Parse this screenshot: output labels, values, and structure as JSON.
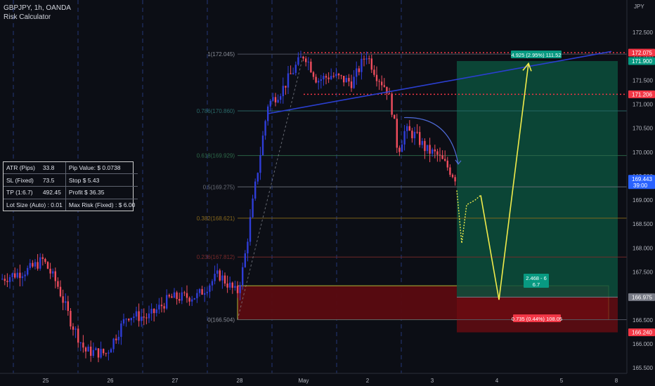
{
  "header": {
    "symbol_line": "GBPJPY, 1h, OANDA",
    "indicator": "Risk Calculator"
  },
  "axis": {
    "currency": "JPY"
  },
  "colors": {
    "bull": "#2f3dd8",
    "bear": "#f04d5e",
    "profit_zone": "#0c4f3c",
    "loss_zone": "#6f0c12",
    "trendline": "#2b3fd1",
    "projection": "#f1ec4b",
    "fib_line": "#4a4d58"
  },
  "chart_data": {
    "type": "candlestick",
    "symbol": "GBPJPY",
    "timeframe": "1h",
    "y_range": [
      165.0,
      172.75
    ],
    "y_ticks": [
      "165.000",
      "165.500",
      "166.000",
      "166.500",
      "167.000",
      "167.500",
      "168.000",
      "168.500",
      "169.000",
      "169.500",
      "170.000",
      "170.500",
      "171.000",
      "171.500",
      "172.000",
      "172.500"
    ],
    "x_ticks": [
      "25",
      "26",
      "27",
      "28",
      "May",
      "2",
      "3",
      "4",
      "5",
      "8"
    ],
    "price_labels": [
      {
        "value": 172.075,
        "label": "172.075",
        "color": "#f23645"
      },
      {
        "value": 171.9,
        "label": "171.900",
        "color": "#089981"
      },
      {
        "value": 171.206,
        "label": "171.206",
        "color": "#f23645"
      },
      {
        "value": 169.443,
        "label": "169.443",
        "sub": "39:00",
        "color": "#2962ff"
      },
      {
        "value": 166.975,
        "label": "166.975",
        "color": "#787b86"
      },
      {
        "value": 166.24,
        "label": "166.240",
        "color": "#f23645"
      }
    ],
    "fib_levels": [
      {
        "ratio": "1",
        "price": 172.045,
        "label": "1(172.045)"
      },
      {
        "ratio": "0.786",
        "price": 170.86,
        "label": "0.786(170.860)"
      },
      {
        "ratio": "0.618",
        "price": 169.929,
        "label": "0.618(169.929)"
      },
      {
        "ratio": "0.5",
        "price": 169.275,
        "label": "0.5(169.275)"
      },
      {
        "ratio": "0.382",
        "price": 168.621,
        "label": "0.382(168.621)"
      },
      {
        "ratio": "0.236",
        "price": 167.812,
        "label": "0.236(167.812)"
      },
      {
        "ratio": "0",
        "price": 166.504,
        "label": "0(166.504)"
      }
    ],
    "position": {
      "entry": 166.975,
      "target": 171.9,
      "stop": 166.24,
      "target_label": "4.925 (2.95%) 111.52",
      "stop_label": "0.735 (0.44%) 108.05",
      "ratio_label_1": "2.468 - 6",
      "ratio_label_2": "6.7"
    },
    "zones": [
      {
        "name": "demand zone",
        "from": 166.504,
        "to": 167.212
      }
    ],
    "levels": [
      {
        "price": 172.075,
        "style": "dotted"
      },
      {
        "price": 171.206,
        "style": "dotted"
      }
    ],
    "series_seed": 7
  },
  "risk_panel": {
    "rows": [
      [
        "ATR (Pips)",
        "33.8",
        "Pip Value: $ 0.0738"
      ],
      [
        "SL (Fixed)",
        "73.5",
        "Stop $ 5.43"
      ],
      [
        "TP (1:6.7)",
        "492.45",
        "Profit $ 36.35"
      ],
      [
        "Lot Size (Auto) : 0.01",
        "",
        "Max Risk (Fixed) : $ 6.00"
      ]
    ]
  }
}
